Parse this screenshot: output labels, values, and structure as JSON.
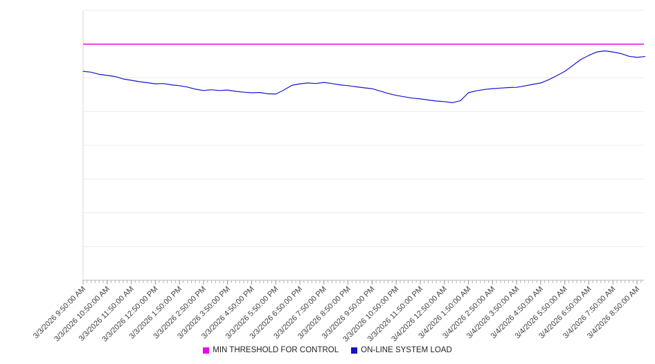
{
  "page": {
    "background": "#ffffff"
  },
  "legend": {
    "items": [
      {
        "label": "MIN THRESHOLD FOR CONTROL",
        "color": "#ee00ee"
      },
      {
        "label": "ON-LINE SYSTEM LOAD",
        "color": "#1414c8"
      }
    ]
  },
  "chart_data": {
    "type": "line",
    "title": "",
    "xlabel": "",
    "ylabel": "",
    "ylim": [
      0,
      100
    ],
    "gridline_step": 12.5,
    "grid": true,
    "legend_position": "bottom",
    "axis_colors": {
      "gridline": "#ececec",
      "left_axis": "#d6d6d6",
      "bottom_axis": "#b5b5b5",
      "major_tick": "#9a9a9a"
    },
    "x_tick_labels": [
      "3/3/2026 9:50:00 AM",
      "3/3/2026 10:50:00 AM",
      "3/3/2026 11:50:00 AM",
      "3/3/2026 12:50:00 PM",
      "3/3/2026 1:50:00 PM",
      "3/3/2026 2:50:00 PM",
      "3/3/2026 3:50:00 PM",
      "3/3/2026 4:50:00 PM",
      "3/3/2026 5:50:00 PM",
      "3/3/2026 6:50:00 PM",
      "3/3/2026 7:50:00 PM",
      "3/3/2026 8:50:00 PM",
      "3/3/2026 9:50:00 PM",
      "3/3/2026 10:50:00 PM",
      "3/3/2026 11:50:00 PM",
      "3/4/2026 12:50:00 AM",
      "3/4/2026 1:50:00 AM",
      "3/4/2026 2:50:00 AM",
      "3/4/2026 3:50:00 AM",
      "3/4/2026 4:50:00 AM",
      "3/4/2026 5:50:00 AM",
      "3/4/2026 6:50:00 AM",
      "3/4/2026 7:50:00 AM",
      "3/4/2026 8:50:00 AM"
    ],
    "series": [
      {
        "name": "MIN THRESHOLD FOR CONTROL",
        "color": "#ee00ee",
        "style": "constant",
        "value": 87.5
      },
      {
        "name": "ON-LINE SYSTEM LOAD",
        "color": "#1414c8",
        "style": "line",
        "points_per_hour": 3,
        "values": [
          77.4,
          77.1,
          76.3,
          75.9,
          75.5,
          74.6,
          74.1,
          73.6,
          73.2,
          72.8,
          72.9,
          72.4,
          72.1,
          71.6,
          70.8,
          70.3,
          70.6,
          70.3,
          70.5,
          70.0,
          69.7,
          69.5,
          69.6,
          69.1,
          69.0,
          70.5,
          72.2,
          72.8,
          73.1,
          72.9,
          73.3,
          72.9,
          72.4,
          72.1,
          71.7,
          71.3,
          71.0,
          70.1,
          69.2,
          68.5,
          68.0,
          67.5,
          67.2,
          66.8,
          66.4,
          66.2,
          65.8,
          66.5,
          69.5,
          70.2,
          70.7,
          71.0,
          71.2,
          71.4,
          71.5,
          72.0,
          72.6,
          73.1,
          74.3,
          75.8,
          77.4,
          79.6,
          81.8,
          83.3,
          84.6,
          85.0,
          84.6,
          84.0,
          83.0,
          82.6,
          82.9
        ]
      }
    ]
  }
}
